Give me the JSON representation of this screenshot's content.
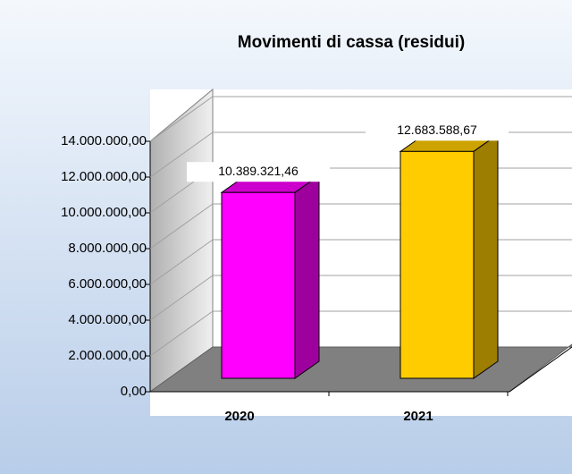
{
  "chart_data": {
    "type": "bar3d",
    "title": "Movimenti di cassa (residui)",
    "categories": [
      "2020",
      "2021"
    ],
    "values": [
      10389321.46,
      12683588.67
    ],
    "value_labels": [
      "10.389.321,46",
      "12.683.588,67"
    ],
    "colors": [
      "#ff00ff",
      "#ffcc00"
    ],
    "ylim": [
      0,
      14000000
    ],
    "yticks": [
      {
        "value": 0,
        "label": "0,00"
      },
      {
        "value": 2000000,
        "label": "2.000.000,00"
      },
      {
        "value": 4000000,
        "label": "4.000.000,00"
      },
      {
        "value": 6000000,
        "label": "6.000.000,00"
      },
      {
        "value": 8000000,
        "label": "8.000.000,00"
      },
      {
        "value": 10000000,
        "label": "10.000.000,00"
      },
      {
        "value": 12000000,
        "label": "12.000.000,00"
      },
      {
        "value": 14000000,
        "label": "14.000.000,00"
      }
    ],
    "grid": true
  }
}
